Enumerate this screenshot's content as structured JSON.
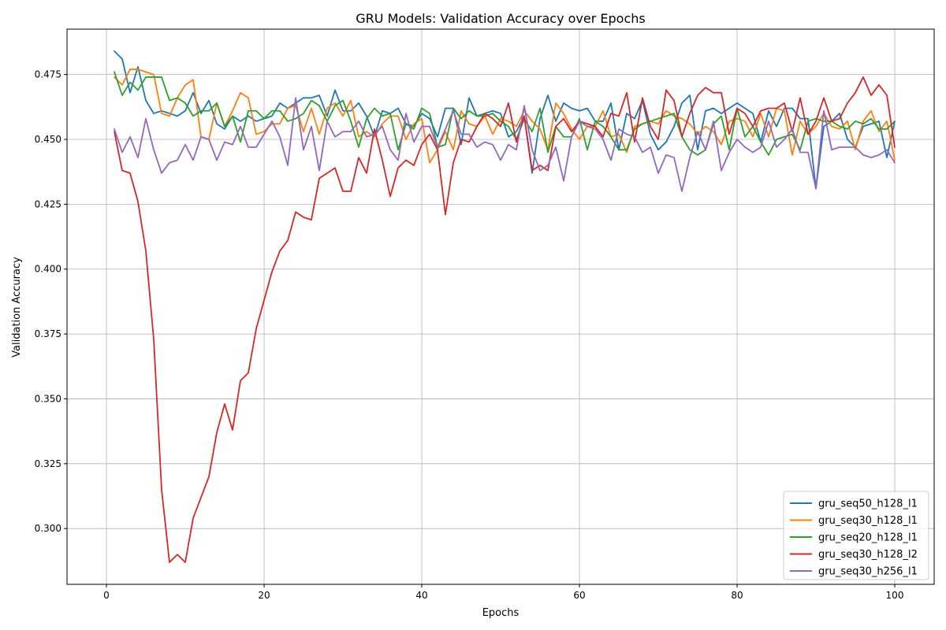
{
  "chart_data": {
    "type": "line",
    "title": "GRU Models: Validation Accuracy over Epochs",
    "xlabel": "Epochs",
    "ylabel": "Validation Accuracy",
    "xlim": [
      -5,
      105
    ],
    "ylim": [
      0.2785,
      0.4925
    ],
    "xticks": [
      0,
      20,
      40,
      60,
      80,
      100
    ],
    "yticks": [
      0.3,
      0.325,
      0.35,
      0.375,
      0.4,
      0.425,
      0.45,
      0.475
    ],
    "grid": true,
    "legend_position": "bottom-right",
    "series": [
      {
        "name": "gru_seq50_h128_l1",
        "color": "#1f77b4",
        "values": [
          0.484,
          0.481,
          0.468,
          0.478,
          0.465,
          0.46,
          0.461,
          0.46,
          0.459,
          0.461,
          0.468,
          0.46,
          0.465,
          0.456,
          0.454,
          0.459,
          0.457,
          0.459,
          0.457,
          0.458,
          0.459,
          0.464,
          0.462,
          0.464,
          0.466,
          0.466,
          0.467,
          0.459,
          0.469,
          0.461,
          0.461,
          0.464,
          0.459,
          0.451,
          0.461,
          0.46,
          0.462,
          0.456,
          0.455,
          0.46,
          0.458,
          0.451,
          0.462,
          0.462,
          0.448,
          0.466,
          0.459,
          0.46,
          0.461,
          0.46,
          0.451,
          0.453,
          0.459,
          0.437,
          0.458,
          0.467,
          0.457,
          0.464,
          0.462,
          0.461,
          0.462,
          0.457,
          0.457,
          0.464,
          0.446,
          0.46,
          0.458,
          0.465,
          0.452,
          0.446,
          0.449,
          0.455,
          0.464,
          0.467,
          0.446,
          0.461,
          0.462,
          0.46,
          0.462,
          0.464,
          0.462,
          0.46,
          0.449,
          0.461,
          0.455,
          0.462,
          0.462,
          0.458,
          0.458,
          0.431,
          0.455,
          0.457,
          0.46,
          0.45,
          0.447,
          0.455,
          0.456,
          0.457,
          0.443,
          0.457
        ]
      },
      {
        "name": "gru_seq30_h128_l1",
        "color": "#ff7f0e",
        "values": [
          0.474,
          0.471,
          0.477,
          0.477,
          0.476,
          0.475,
          0.46,
          0.459,
          0.466,
          0.471,
          0.473,
          0.451,
          0.45,
          0.464,
          0.455,
          0.461,
          0.468,
          0.466,
          0.452,
          0.453,
          0.456,
          0.456,
          0.462,
          0.463,
          0.453,
          0.462,
          0.452,
          0.462,
          0.464,
          0.459,
          0.465,
          0.451,
          0.453,
          0.451,
          0.456,
          0.459,
          0.459,
          0.45,
          0.456,
          0.458,
          0.441,
          0.446,
          0.453,
          0.446,
          0.461,
          0.456,
          0.455,
          0.459,
          0.452,
          0.458,
          0.457,
          0.455,
          0.461,
          0.457,
          0.454,
          0.446,
          0.464,
          0.46,
          0.454,
          0.45,
          0.455,
          0.455,
          0.461,
          0.451,
          0.452,
          0.445,
          0.455,
          0.456,
          0.457,
          0.456,
          0.461,
          0.459,
          0.458,
          0.456,
          0.452,
          0.455,
          0.453,
          0.448,
          0.457,
          0.458,
          0.457,
          0.451,
          0.46,
          0.451,
          0.462,
          0.461,
          0.444,
          0.457,
          0.452,
          0.455,
          0.46,
          0.455,
          0.454,
          0.457,
          0.446,
          0.457,
          0.461,
          0.453,
          0.457,
          0.442
        ]
      },
      {
        "name": "gru_seq20_h128_l1",
        "color": "#2ca02c",
        "values": [
          0.476,
          0.467,
          0.472,
          0.469,
          0.474,
          0.474,
          0.474,
          0.465,
          0.466,
          0.464,
          0.459,
          0.461,
          0.461,
          0.464,
          0.455,
          0.459,
          0.449,
          0.461,
          0.461,
          0.458,
          0.461,
          0.461,
          0.457,
          0.458,
          0.46,
          0.465,
          0.463,
          0.457,
          0.463,
          0.465,
          0.457,
          0.447,
          0.458,
          0.462,
          0.459,
          0.46,
          0.446,
          0.456,
          0.454,
          0.462,
          0.46,
          0.447,
          0.448,
          0.462,
          0.458,
          0.461,
          0.459,
          0.459,
          0.46,
          0.457,
          0.455,
          0.45,
          0.458,
          0.453,
          0.462,
          0.445,
          0.455,
          0.451,
          0.451,
          0.458,
          0.446,
          0.457,
          0.455,
          0.451,
          0.446,
          0.446,
          0.454,
          0.456,
          0.457,
          0.458,
          0.459,
          0.46,
          0.451,
          0.446,
          0.444,
          0.446,
          0.456,
          0.459,
          0.446,
          0.462,
          0.451,
          0.455,
          0.449,
          0.444,
          0.45,
          0.451,
          0.452,
          0.446,
          0.457,
          0.458,
          0.457,
          0.457,
          0.455,
          0.454,
          0.457,
          0.456,
          0.458,
          0.454,
          0.454,
          0.457
        ]
      },
      {
        "name": "gru_seq30_h128_l2",
        "color": "#d62728",
        "values": [
          0.453,
          0.438,
          0.437,
          0.426,
          0.407,
          0.373,
          0.315,
          0.287,
          0.29,
          0.287,
          0.304,
          0.312,
          0.32,
          0.337,
          0.348,
          0.338,
          0.357,
          0.36,
          0.377,
          0.388,
          0.399,
          0.407,
          0.411,
          0.422,
          0.42,
          0.419,
          0.435,
          0.437,
          0.439,
          0.43,
          0.43,
          0.443,
          0.437,
          0.454,
          0.442,
          0.428,
          0.439,
          0.442,
          0.44,
          0.448,
          0.452,
          0.446,
          0.421,
          0.441,
          0.45,
          0.449,
          0.455,
          0.46,
          0.458,
          0.455,
          0.464,
          0.449,
          0.459,
          0.438,
          0.44,
          0.438,
          0.455,
          0.458,
          0.453,
          0.457,
          0.456,
          0.455,
          0.451,
          0.46,
          0.459,
          0.468,
          0.449,
          0.466,
          0.455,
          0.45,
          0.469,
          0.465,
          0.451,
          0.46,
          0.467,
          0.47,
          0.468,
          0.468,
          0.452,
          0.462,
          0.46,
          0.455,
          0.461,
          0.462,
          0.462,
          0.464,
          0.453,
          0.466,
          0.452,
          0.457,
          0.466,
          0.457,
          0.458,
          0.464,
          0.468,
          0.474,
          0.467,
          0.471,
          0.467,
          0.447
        ]
      },
      {
        "name": "gru_seq30_h256_l1",
        "color": "#9467bd",
        "values": [
          0.454,
          0.445,
          0.451,
          0.443,
          0.458,
          0.446,
          0.437,
          0.441,
          0.442,
          0.448,
          0.442,
          0.451,
          0.45,
          0.442,
          0.449,
          0.448,
          0.455,
          0.447,
          0.447,
          0.452,
          0.457,
          0.451,
          0.44,
          0.466,
          0.446,
          0.455,
          0.438,
          0.457,
          0.451,
          0.453,
          0.453,
          0.457,
          0.451,
          0.452,
          0.455,
          0.446,
          0.442,
          0.46,
          0.449,
          0.455,
          0.455,
          0.447,
          0.454,
          0.461,
          0.452,
          0.452,
          0.447,
          0.449,
          0.448,
          0.442,
          0.448,
          0.446,
          0.463,
          0.446,
          0.438,
          0.44,
          0.447,
          0.434,
          0.451,
          0.457,
          0.455,
          0.454,
          0.45,
          0.442,
          0.454,
          0.452,
          0.451,
          0.445,
          0.447,
          0.437,
          0.444,
          0.443,
          0.43,
          0.443,
          0.453,
          0.446,
          0.457,
          0.438,
          0.445,
          0.45,
          0.447,
          0.445,
          0.447,
          0.457,
          0.447,
          0.45,
          0.454,
          0.445,
          0.445,
          0.431,
          0.461,
          0.446,
          0.447,
          0.447,
          0.447,
          0.444,
          0.443,
          0.444,
          0.446,
          0.441
        ]
      }
    ]
  }
}
